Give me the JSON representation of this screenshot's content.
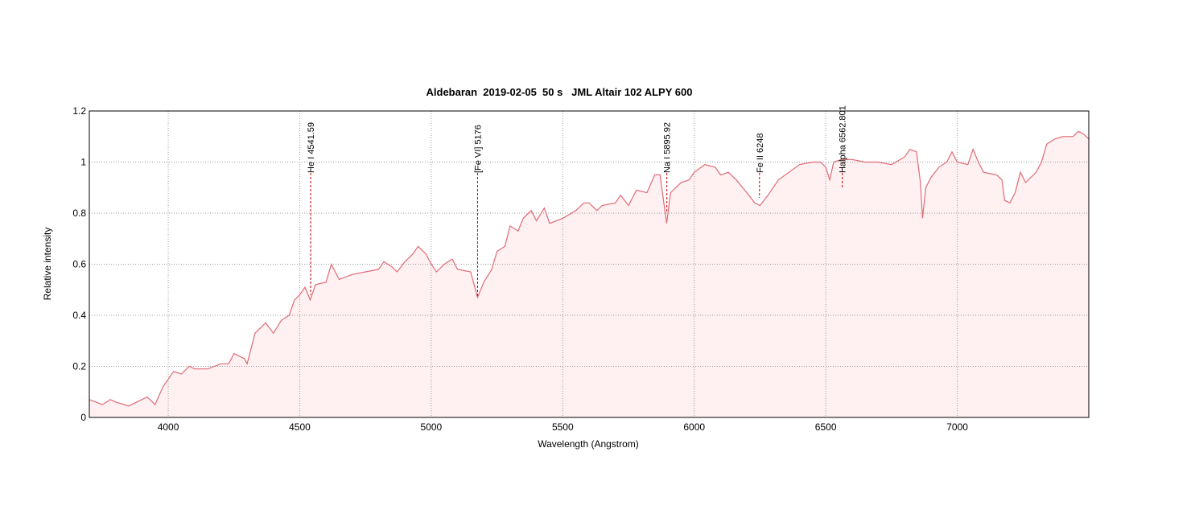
{
  "chart_data": {
    "type": "line",
    "title": "Aldebaran  2019-02-05  50 s   JML Altair 102 ALPY 600",
    "x_label": "Wavelength (Angstrom)",
    "y_label": "Relative intensity",
    "color": "#e06a76",
    "fill": "#fff0f1",
    "grid": true,
    "xlim": [
      3700,
      7500
    ],
    "ylim": [
      0,
      1.2
    ],
    "xticks": [
      4000,
      4500,
      5000,
      5500,
      6000,
      6500,
      7000
    ],
    "yticks": [
      0,
      0.2,
      0.4,
      0.6,
      0.8,
      1,
      1.2
    ],
    "x": [
      3700,
      3750,
      3780,
      3800,
      3850,
      3880,
      3920,
      3950,
      3980,
      4000,
      4020,
      4050,
      4080,
      4100,
      4150,
      4200,
      4230,
      4250,
      4290,
      4300,
      4330,
      4370,
      4400,
      4430,
      4460,
      4480,
      4500,
      4520,
      4540,
      4560,
      4600,
      4620,
      4650,
      4700,
      4750,
      4800,
      4820,
      4850,
      4870,
      4900,
      4930,
      4950,
      4980,
      5000,
      5020,
      5050,
      5080,
      5100,
      5150,
      5176,
      5200,
      5230,
      5250,
      5280,
      5300,
      5330,
      5350,
      5380,
      5400,
      5430,
      5450,
      5500,
      5550,
      5580,
      5600,
      5630,
      5650,
      5700,
      5720,
      5750,
      5780,
      5820,
      5850,
      5870,
      5895,
      5910,
      5950,
      5980,
      6000,
      6040,
      6080,
      6100,
      6130,
      6160,
      6200,
      6230,
      6250,
      6280,
      6320,
      6360,
      6400,
      6450,
      6480,
      6500,
      6515,
      6530,
      6560,
      6600,
      6650,
      6700,
      6750,
      6800,
      6820,
      6845,
      6860,
      6868,
      6880,
      6900,
      6930,
      6960,
      6980,
      7000,
      7040,
      7060,
      7080,
      7100,
      7150,
      7170,
      7180,
      7200,
      7220,
      7240,
      7260,
      7300,
      7320,
      7340,
      7370,
      7400,
      7440,
      7460,
      7480,
      7500
    ],
    "values": [
      0.07,
      0.05,
      0.07,
      0.06,
      0.045,
      0.06,
      0.08,
      0.05,
      0.12,
      0.15,
      0.18,
      0.17,
      0.2,
      0.19,
      0.19,
      0.21,
      0.21,
      0.25,
      0.23,
      0.21,
      0.33,
      0.37,
      0.33,
      0.38,
      0.4,
      0.46,
      0.48,
      0.51,
      0.46,
      0.52,
      0.53,
      0.6,
      0.54,
      0.56,
      0.57,
      0.58,
      0.61,
      0.59,
      0.57,
      0.61,
      0.64,
      0.67,
      0.64,
      0.6,
      0.57,
      0.6,
      0.62,
      0.58,
      0.57,
      0.47,
      0.53,
      0.58,
      0.65,
      0.67,
      0.75,
      0.73,
      0.78,
      0.81,
      0.77,
      0.82,
      0.76,
      0.78,
      0.81,
      0.84,
      0.84,
      0.81,
      0.83,
      0.84,
      0.87,
      0.83,
      0.89,
      0.88,
      0.95,
      0.95,
      0.76,
      0.88,
      0.92,
      0.93,
      0.96,
      0.99,
      0.98,
      0.95,
      0.96,
      0.93,
      0.88,
      0.84,
      0.83,
      0.87,
      0.93,
      0.96,
      0.99,
      1.0,
      1.0,
      0.98,
      0.93,
      1.0,
      1.01,
      1.01,
      1.0,
      1.0,
      0.99,
      1.02,
      1.05,
      1.04,
      0.92,
      0.78,
      0.9,
      0.94,
      0.98,
      1.0,
      1.04,
      1.0,
      0.99,
      1.05,
      1.0,
      0.96,
      0.95,
      0.93,
      0.85,
      0.84,
      0.88,
      0.96,
      0.92,
      0.96,
      1.0,
      1.07,
      1.09,
      1.1,
      1.1,
      1.12,
      1.11,
      1.09
    ],
    "annotations": [
      {
        "text": "He I 4541.59",
        "x": 4541.59,
        "y": 0.48
      },
      {
        "text": "[Fe VI] 5176",
        "x": 5176,
        "y": 0.47
      },
      {
        "text": "Na I 5895.92",
        "x": 5895.92,
        "y": 0.8
      },
      {
        "text": "Fe II 6248",
        "x": 6248,
        "y": 0.86
      },
      {
        "text": "Halpha 6562.801",
        "x": 6562.801,
        "y": 0.9
      }
    ]
  }
}
